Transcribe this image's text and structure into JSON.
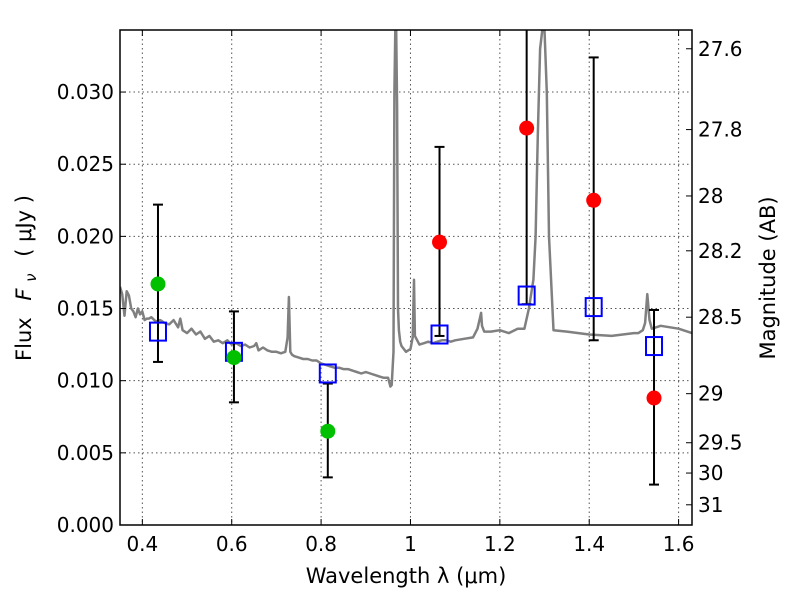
{
  "chart_data": {
    "type": "scatter",
    "xlabel": "Wavelength  λ (μm)",
    "ylabel_text": "Flux",
    "ylabel_symbol": "F",
    "ylabel_subscript": "ν",
    "ylabel_units": "( μJy )",
    "y2label": "Magnitude (AB)",
    "xlim": [
      0.35,
      1.63
    ],
    "ylim": [
      0.0,
      0.0343
    ],
    "grid": true,
    "x_ticks": [
      0.4,
      0.6,
      0.8,
      1.0,
      1.2,
      1.4,
      1.6
    ],
    "x_tick_labels": [
      "0.4",
      "0.6",
      "0.8",
      "1",
      "1.2",
      "1.4",
      "1.6"
    ],
    "y_ticks": [
      0.0,
      0.005,
      0.01,
      0.015,
      0.02,
      0.025,
      0.03
    ],
    "y_tick_labels": [
      "0.000",
      "0.005",
      "0.010",
      "0.015",
      "0.020",
      "0.025",
      "0.030"
    ],
    "mag_ticks": [
      {
        "label": "27.6",
        "y": 0.033
      },
      {
        "label": "27.8",
        "y": 0.0274
      },
      {
        "label": "28",
        "y": 0.0228
      },
      {
        "label": "28.2",
        "y": 0.019
      },
      {
        "label": "28.5",
        "y": 0.0144
      },
      {
        "label": "29",
        "y": 0.0091
      },
      {
        "label": "29.5",
        "y": 0.0057
      },
      {
        "label": "30",
        "y": 0.0036
      },
      {
        "label": "31",
        "y": 0.0014
      }
    ],
    "colors": {
      "detections_green": "#00c000",
      "detections_red": "#ff0000",
      "model_squares": "#0000ff",
      "spectrum": "#808080",
      "error_bars": "#000000"
    },
    "series": [
      {
        "role": "green-detections",
        "x": [
          0.435,
          0.605,
          0.815
        ],
        "y": [
          0.0167,
          0.0116,
          0.0065
        ],
        "yerr_low": [
          0.0113,
          0.0085,
          0.0033
        ],
        "yerr_high": [
          0.0222,
          0.0148,
          0.0098
        ]
      },
      {
        "role": "red-detections",
        "x": [
          1.065,
          1.26,
          1.41,
          1.545
        ],
        "y": [
          0.0196,
          0.0275,
          0.0225,
          0.0088
        ],
        "yerr_low": [
          0.0131,
          0.0153,
          0.0128,
          0.0028
        ],
        "yerr_high": [
          0.0262,
          0.0343,
          0.0324,
          0.0149
        ]
      },
      {
        "role": "model-squares",
        "x": [
          0.435,
          0.605,
          0.815,
          1.065,
          1.26,
          1.41,
          1.545
        ],
        "y": [
          0.0134,
          0.012,
          0.0105,
          0.0132,
          0.0159,
          0.0151,
          0.0124
        ]
      }
    ],
    "spectrum": {
      "x": [
        0.35,
        0.355,
        0.36,
        0.365,
        0.37,
        0.375,
        0.38,
        0.385,
        0.39,
        0.395,
        0.4,
        0.405,
        0.41,
        0.415,
        0.42,
        0.43,
        0.44,
        0.45,
        0.46,
        0.47,
        0.48,
        0.485,
        0.49,
        0.5,
        0.51,
        0.52,
        0.53,
        0.54,
        0.55,
        0.56,
        0.57,
        0.58,
        0.59,
        0.6,
        0.61,
        0.62,
        0.63,
        0.64,
        0.65,
        0.655,
        0.66,
        0.67,
        0.68,
        0.69,
        0.7,
        0.71,
        0.72,
        0.725,
        0.728,
        0.731,
        0.735,
        0.74,
        0.75,
        0.76,
        0.77,
        0.78,
        0.79,
        0.8,
        0.81,
        0.82,
        0.83,
        0.84,
        0.85,
        0.86,
        0.87,
        0.88,
        0.89,
        0.9,
        0.91,
        0.92,
        0.93,
        0.94,
        0.95,
        0.955,
        0.958,
        0.962,
        0.964,
        0.966,
        0.968,
        0.97,
        0.972,
        0.974,
        0.977,
        0.98,
        0.99,
        1.0,
        1.005,
        1.008,
        1.01,
        1.02,
        1.03,
        1.04,
        1.05,
        1.06,
        1.07,
        1.08,
        1.09,
        1.1,
        1.12,
        1.14,
        1.15,
        1.158,
        1.16,
        1.165,
        1.18,
        1.2,
        1.22,
        1.24,
        1.255,
        1.265,
        1.275,
        1.28,
        1.285,
        1.29,
        1.295,
        1.3,
        1.305,
        1.31,
        1.32,
        1.35,
        1.4,
        1.45,
        1.5,
        1.51,
        1.52,
        1.525,
        1.53,
        1.535,
        1.54,
        1.56,
        1.6,
        1.63
      ],
      "y": [
        0.0165,
        0.016,
        0.0145,
        0.0162,
        0.0159,
        0.015,
        0.0148,
        0.0144,
        0.015,
        0.0146,
        0.0148,
        0.0142,
        0.0143,
        0.0143,
        0.0144,
        0.0141,
        0.0142,
        0.014,
        0.0139,
        0.0142,
        0.0137,
        0.0143,
        0.0135,
        0.0133,
        0.0136,
        0.0132,
        0.0134,
        0.0129,
        0.0131,
        0.0127,
        0.0128,
        0.0126,
        0.0128,
        0.0125,
        0.0126,
        0.0124,
        0.0125,
        0.0123,
        0.0124,
        0.0126,
        0.0121,
        0.0123,
        0.0121,
        0.012,
        0.012,
        0.0119,
        0.012,
        0.013,
        0.0158,
        0.012,
        0.0118,
        0.0117,
        0.0116,
        0.0115,
        0.0115,
        0.0114,
        0.0114,
        0.0112,
        0.0111,
        0.011,
        0.0109,
        0.0109,
        0.0108,
        0.0108,
        0.0107,
        0.0106,
        0.0105,
        0.0106,
        0.0105,
        0.0104,
        0.0103,
        0.0102,
        0.0102,
        0.0096,
        0.0097,
        0.012,
        0.03,
        0.0343,
        0.0343,
        0.029,
        0.015,
        0.0135,
        0.0127,
        0.0124,
        0.012,
        0.0122,
        0.013,
        0.017,
        0.0131,
        0.0125,
        0.0126,
        0.0127,
        0.0126,
        0.0127,
        0.0128,
        0.0128,
        0.0127,
        0.0128,
        0.0129,
        0.013,
        0.0136,
        0.0147,
        0.0138,
        0.0134,
        0.0134,
        0.0135,
        0.0133,
        0.0136,
        0.0136,
        0.015,
        0.017,
        0.02,
        0.027,
        0.033,
        0.0343,
        0.0343,
        0.03,
        0.02,
        0.0135,
        0.0134,
        0.0132,
        0.0131,
        0.0133,
        0.0133,
        0.0135,
        0.014,
        0.016,
        0.0142,
        0.0136,
        0.0138,
        0.0136,
        0.0133
      ]
    }
  }
}
